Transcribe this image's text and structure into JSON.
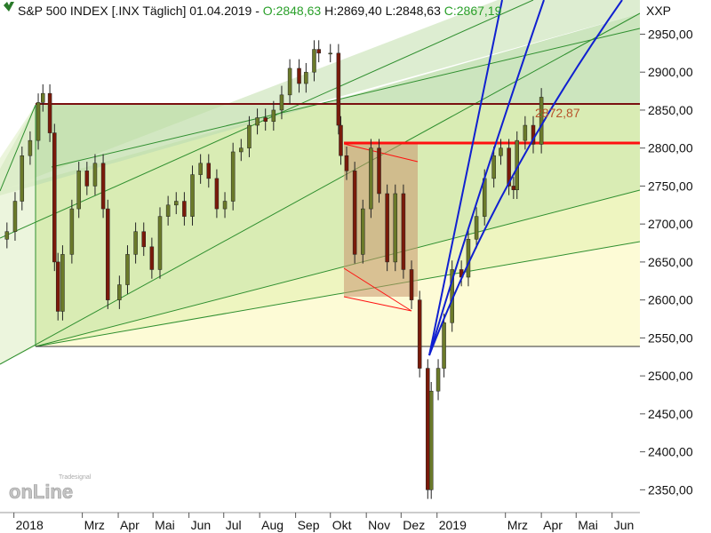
{
  "header": {
    "symbol": "S&P 500 INDEX [.INX",
    "interval": "Täglich]",
    "date": "01.04.2019",
    "open": "O:2848,63",
    "high": "H:2869,40",
    "low": "L:2848,63",
    "close": "C:2867,19",
    "dash": "-",
    "axis_code": "XXP"
  },
  "logo": {
    "brand": "Tradesignal",
    "product": "onLine"
  },
  "last_price_label": "2872,87",
  "colors": {
    "background": "#ffffff",
    "band_top": "#c3e0b3",
    "band_mid": "#d9ecb4",
    "band_low": "#eef5c0",
    "band_bottom": "#fdfbd6",
    "resistance_dark": "#7a1010",
    "resistance_red": "#ff1010",
    "fan_blue": "#1020d0",
    "green_line": "#2f8f2f",
    "ohlc_green": "#2aa02a",
    "box_fill": "#c8966e",
    "candle_up": "#6b7a2a",
    "candle_down": "#7a1a0a"
  },
  "chart_data": {
    "type": "candlestick",
    "title": "S&P 500 INDEX [.INX Täglich]",
    "y_ticks": [
      "2350,00",
      "2400,00",
      "2450,00",
      "2500,00",
      "2550,00",
      "2600,00",
      "2650,00",
      "2700,00",
      "2750,00",
      "2800,00",
      "2850,00",
      "2900,00",
      "2950,00"
    ],
    "y_tick_values": [
      2350,
      2400,
      2450,
      2500,
      2550,
      2600,
      2650,
      2700,
      2750,
      2800,
      2850,
      2900,
      2950
    ],
    "x_ticks": [
      "2018",
      "Mrz",
      "Apr",
      "Mai",
      "Jun",
      "Jul",
      "Aug",
      "Sep",
      "Okt",
      "Nov",
      "Dez",
      "2019",
      "Mrz",
      "Apr",
      "Mai",
      "Jun"
    ],
    "ylim": [
      2320,
      2995
    ],
    "grid": false,
    "series": [
      {
        "x": [
          "2017-12-26",
          "2018-01-02",
          "2018-01-08",
          "2018-01-15",
          "2018-01-22",
          "2018-01-26",
          "2018-02-01",
          "2018-02-05",
          "2018-02-08",
          "2018-02-12",
          "2018-02-20",
          "2018-02-26",
          "2018-03-05",
          "2018-03-12",
          "2018-03-19",
          "2018-03-23",
          "2018-04-02",
          "2018-04-09",
          "2018-04-16",
          "2018-04-23",
          "2018-04-30",
          "2018-05-07",
          "2018-05-14",
          "2018-05-21",
          "2018-05-28",
          "2018-06-04",
          "2018-06-11",
          "2018-06-18",
          "2018-06-25",
          "2018-07-02",
          "2018-07-09",
          "2018-07-16",
          "2018-07-23",
          "2018-07-30",
          "2018-08-06",
          "2018-08-13",
          "2018-08-20",
          "2018-08-27",
          "2018-09-04",
          "2018-09-10",
          "2018-09-17",
          "2018-09-21",
          "2018-10-01",
          "2018-10-08",
          "2018-10-10",
          "2018-10-15",
          "2018-10-22",
          "2018-10-29",
          "2018-11-05",
          "2018-11-12",
          "2018-11-19",
          "2018-11-26",
          "2018-12-03",
          "2018-12-10",
          "2018-12-17",
          "2018-12-24",
          "2018-12-27",
          "2019-01-02",
          "2019-01-07",
          "2019-01-14",
          "2019-01-22",
          "2019-01-28",
          "2019-02-04",
          "2019-02-11",
          "2019-02-19",
          "2019-02-25",
          "2019-03-04",
          "2019-03-08",
          "2019-03-11",
          "2019-03-18",
          "2019-03-25",
          "2019-04-01"
        ],
        "close": [
          2690,
          2730,
          2790,
          2810,
          2860,
          2872,
          2820,
          2650,
          2585,
          2660,
          2720,
          2770,
          2750,
          2780,
          2720,
          2600,
          2620,
          2660,
          2690,
          2670,
          2640,
          2710,
          2725,
          2730,
          2710,
          2765,
          2780,
          2760,
          2720,
          2730,
          2795,
          2800,
          2830,
          2840,
          2835,
          2850,
          2870,
          2905,
          2885,
          2900,
          2930,
          2925,
          2925,
          2830,
          2790,
          2770,
          2660,
          2720,
          2800,
          2740,
          2650,
          2740,
          2640,
          2600,
          2510,
          2350,
          2480,
          2510,
          2570,
          2640,
          2630,
          2680,
          2710,
          2760,
          2790,
          2800,
          2750,
          2745,
          2810,
          2830,
          2805,
          2867
        ]
      }
    ]
  }
}
